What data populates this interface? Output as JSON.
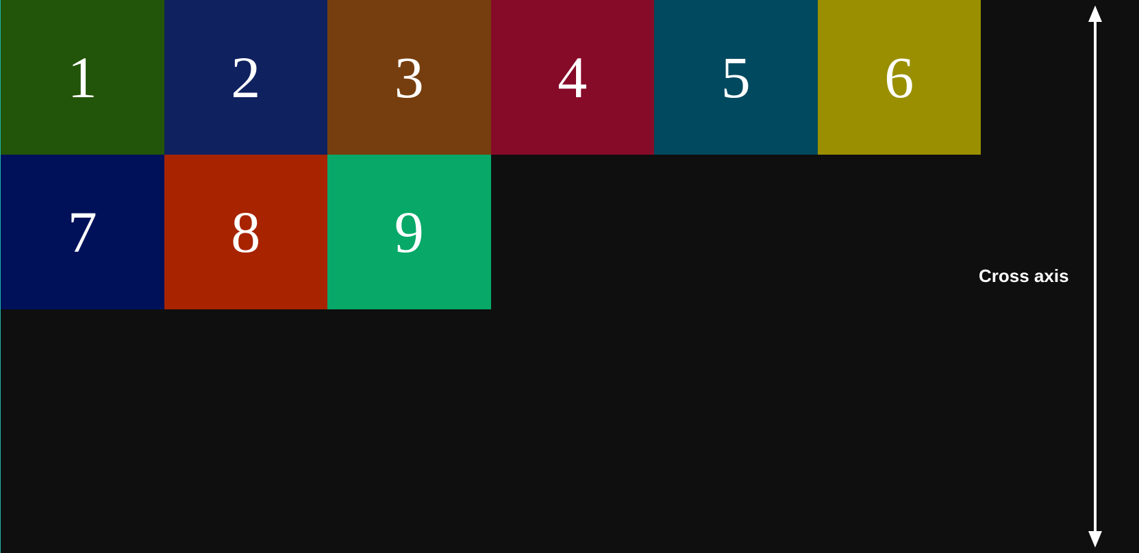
{
  "items": [
    {
      "label": "1",
      "color": "#225409"
    },
    {
      "label": "2",
      "color": "#0f215e"
    },
    {
      "label": "3",
      "color": "#763e0e"
    },
    {
      "label": "4",
      "color": "#860b28"
    },
    {
      "label": "5",
      "color": "#01495e"
    },
    {
      "label": "6",
      "color": "#998f00"
    },
    {
      "label": "7",
      "color": "#001159"
    },
    {
      "label": "8",
      "color": "#a82300"
    },
    {
      "label": "9",
      "color": "#07a868"
    }
  ],
  "axis": {
    "label": "Cross axis",
    "color": "#ffffff"
  },
  "background": "#0f0f0f"
}
